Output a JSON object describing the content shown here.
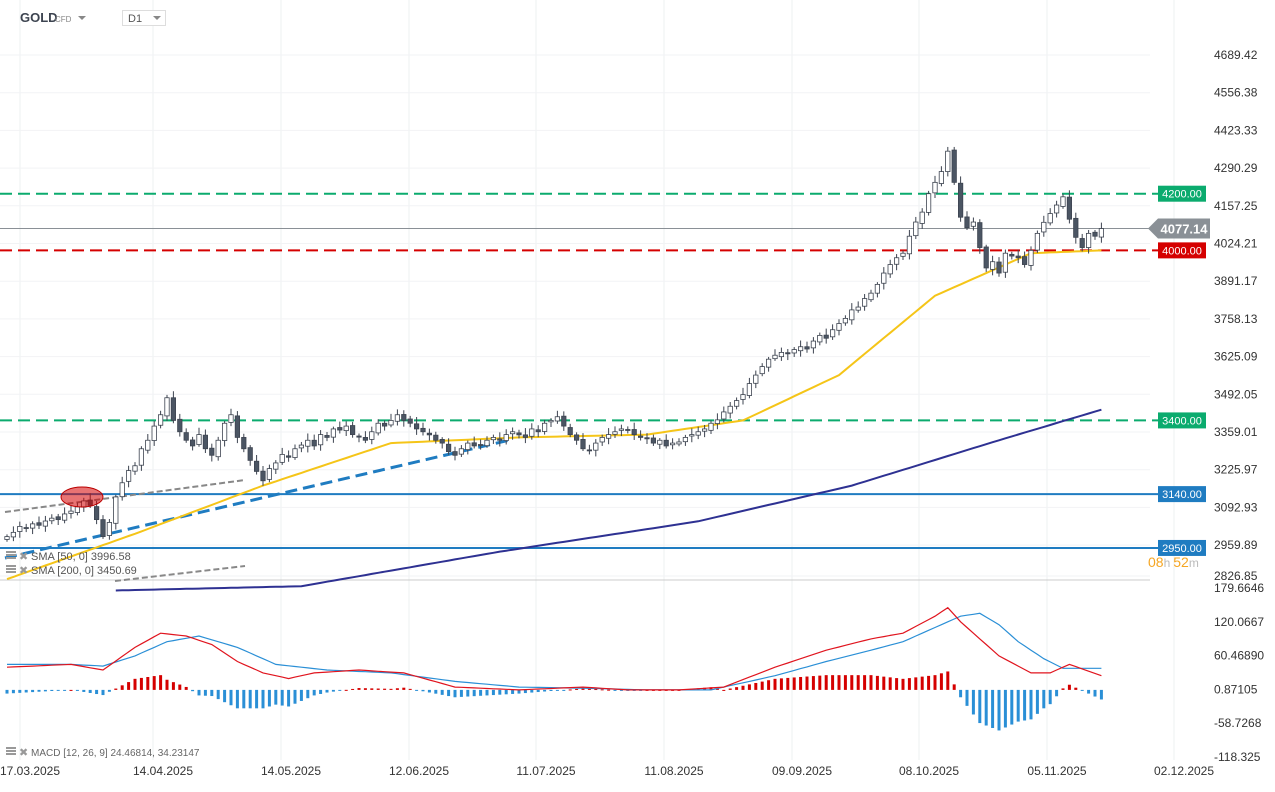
{
  "header": {
    "symbol": "GOLD",
    "instrument_type": "CFD",
    "timeframe": "D1"
  },
  "countdown": {
    "hours": "08",
    "h_unit": "h",
    "minutes": "52",
    "m_unit": "m"
  },
  "legend": {
    "sma50": "SMA [50, 0] 3996.58",
    "sma200": "SMA [200, 0] 3450.69",
    "macd": "MACD [12, 26, 9] 24.46814,  34.23147"
  },
  "colors": {
    "up": "#ffffff",
    "down": "#4b5563",
    "sma50": "#f5c518",
    "sma200": "#2e3192",
    "level_green": "#0bab6e",
    "level_red": "#d50000",
    "level_blue": "#1f7cc1",
    "macd": "#e0141e",
    "signal": "#2a8fd6"
  },
  "chart_data": [
    {
      "type": "candlestick",
      "price_axis_ticks": [
        "4689.42",
        "4556.38",
        "4423.33",
        "4290.29",
        "4157.25",
        "4024.21",
        "3891.17",
        "3758.13",
        "3625.09",
        "3492.05",
        "3359.01",
        "3225.97",
        "3092.93",
        "2959.89",
        "2826.85"
      ],
      "ylim": [
        2826.85,
        4689.42
      ],
      "date_ticks": [
        "17.03.2025",
        "14.04.2025",
        "14.05.2025",
        "12.06.2025",
        "11.07.2025",
        "11.08.2025",
        "09.09.2025",
        "08.10.2025",
        "05.11.2025",
        "02.12.2025"
      ],
      "current_price": "4077.14",
      "closes": [
        2990,
        3005,
        3026,
        3020,
        3035,
        3030,
        3045,
        3055,
        3050,
        3070,
        3080,
        3095,
        3116,
        3100,
        3050,
        2990,
        3040,
        3130,
        3180,
        3223,
        3240,
        3300,
        3330,
        3380,
        3420,
        3480,
        3400,
        3360,
        3330,
        3310,
        3350,
        3300,
        3277,
        3330,
        3390,
        3420,
        3340,
        3300,
        3259,
        3220,
        3187,
        3230,
        3250,
        3280,
        3270,
        3300,
        3313,
        3330,
        3310,
        3350,
        3340,
        3370,
        3366,
        3380,
        3350,
        3341,
        3330,
        3360,
        3390,
        3380,
        3400,
        3420,
        3400,
        3390,
        3370,
        3360,
        3349,
        3330,
        3320,
        3290,
        3277,
        3300,
        3320,
        3310,
        3313,
        3330,
        3340,
        3330,
        3350,
        3360,
        3349,
        3340,
        3370,
        3360,
        3390,
        3400,
        3413,
        3380,
        3350,
        3330,
        3300,
        3295,
        3320,
        3340,
        3350,
        3360,
        3370,
        3366,
        3350,
        3340,
        3335,
        3320,
        3330,
        3310,
        3320,
        3324,
        3340,
        3350,
        3360,
        3370,
        3390,
        3402,
        3430,
        3450,
        3470,
        3491,
        3530,
        3560,
        3590,
        3616,
        3630,
        3640,
        3635,
        3650,
        3660,
        3652,
        3680,
        3700,
        3690,
        3720,
        3742,
        3760,
        3790,
        3800,
        3830,
        3849,
        3880,
        3920,
        3950,
        3974,
        3990,
        4050,
        4100,
        4135,
        4200,
        4240,
        4278,
        4350,
        4240,
        4117,
        4080,
        4100,
        4010,
        3938,
        3960,
        3920,
        3990,
        3980,
        3974,
        3950,
        4000,
        4060,
        4099,
        4130,
        4160,
        4189,
        4110,
        4046,
        4010,
        4060,
        4050,
        4077
      ],
      "sma50": [
        [
          0,
          2840
        ],
        [
          20,
          3000
        ],
        [
          40,
          3170
        ],
        [
          60,
          3320
        ],
        [
          80,
          3340
        ],
        [
          100,
          3350
        ],
        [
          115,
          3400
        ],
        [
          130,
          3560
        ],
        [
          145,
          3840
        ],
        [
          160,
          3990
        ],
        [
          171,
          4000
        ]
      ],
      "sma200": [
        [
          17,
          2800
        ],
        [
          46,
          2815
        ],
        [
          77,
          2937
        ],
        [
          108,
          3044
        ],
        [
          132,
          3170
        ],
        [
          155,
          3330
        ],
        [
          171,
          3438
        ]
      ],
      "levels": [
        {
          "value": "4200.00",
          "style": "dashed",
          "color": "green"
        },
        {
          "value": "4000.00",
          "style": "dashed",
          "color": "red"
        },
        {
          "value": "3400.00",
          "style": "dashed",
          "color": "green"
        },
        {
          "value": "3140.00",
          "style": "solid",
          "color": "blue"
        },
        {
          "value": "2950.00",
          "style": "solid",
          "color": "blue"
        }
      ]
    },
    {
      "type": "macd",
      "axis_ticks": [
        "179.6646",
        "120.0667",
        "60.46890",
        "0.87105",
        "-58.7268",
        "-118.325"
      ],
      "ylim": [
        -118.325,
        179.6646
      ],
      "macd": [
        [
          0,
          40
        ],
        [
          10,
          45
        ],
        [
          15,
          35
        ],
        [
          20,
          75
        ],
        [
          24,
          100
        ],
        [
          28,
          95
        ],
        [
          32,
          80
        ],
        [
          36,
          50
        ],
        [
          40,
          30
        ],
        [
          44,
          20
        ],
        [
          48,
          30
        ],
        [
          55,
          35
        ],
        [
          62,
          30
        ],
        [
          70,
          5
        ],
        [
          80,
          0
        ],
        [
          90,
          5
        ],
        [
          97,
          0
        ],
        [
          105,
          0
        ],
        [
          112,
          5
        ],
        [
          120,
          40
        ],
        [
          128,
          70
        ],
        [
          135,
          90
        ],
        [
          140,
          100
        ],
        [
          145,
          130
        ],
        [
          147,
          145
        ],
        [
          149,
          120
        ],
        [
          155,
          60
        ],
        [
          160,
          30
        ],
        [
          163,
          30
        ],
        [
          166,
          45
        ],
        [
          171,
          25
        ]
      ],
      "signal": [
        [
          0,
          45
        ],
        [
          10,
          45
        ],
        [
          15,
          42
        ],
        [
          20,
          60
        ],
        [
          25,
          85
        ],
        [
          30,
          95
        ],
        [
          36,
          75
        ],
        [
          42,
          45
        ],
        [
          50,
          35
        ],
        [
          60,
          30
        ],
        [
          70,
          15
        ],
        [
          80,
          5
        ],
        [
          90,
          3
        ],
        [
          100,
          0
        ],
        [
          110,
          0
        ],
        [
          120,
          25
        ],
        [
          128,
          50
        ],
        [
          135,
          70
        ],
        [
          140,
          85
        ],
        [
          145,
          110
        ],
        [
          149,
          130
        ],
        [
          152,
          135
        ],
        [
          155,
          115
        ],
        [
          158,
          85
        ],
        [
          162,
          55
        ],
        [
          165,
          38
        ],
        [
          171,
          38
        ]
      ]
    }
  ]
}
